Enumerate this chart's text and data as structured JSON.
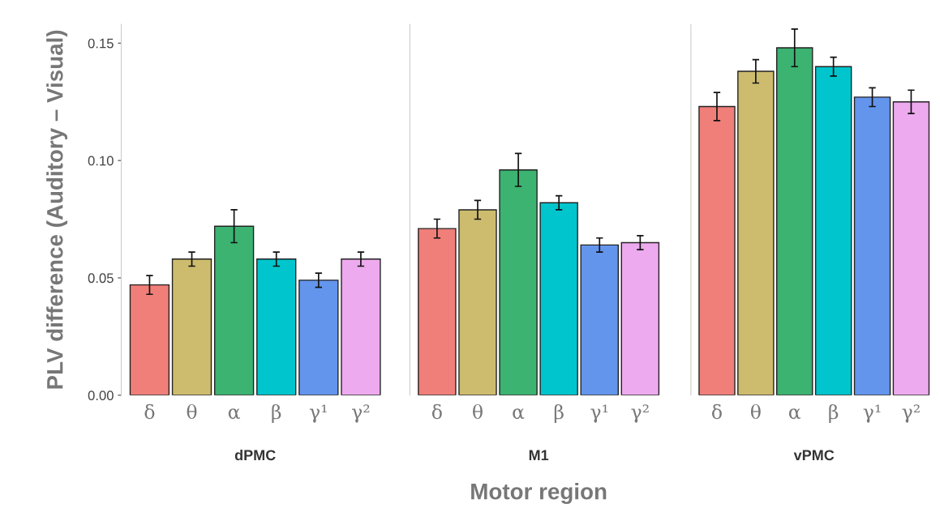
{
  "chart_data": [
    {
      "type": "bar",
      "title": "dPMC",
      "ylabel": "PLV difference (Auditory – Visual)",
      "categories": [
        "δ",
        "θ",
        "α",
        "β",
        "γ¹",
        "γ²"
      ],
      "values": [
        0.047,
        0.058,
        0.072,
        0.058,
        0.049,
        0.058
      ],
      "errors": [
        0.004,
        0.003,
        0.007,
        0.003,
        0.003,
        0.003
      ],
      "colors": [
        "#f07f7a",
        "#cdbc6e",
        "#3cb371",
        "#00c5cd",
        "#6495ed",
        "#eeaaee"
      ],
      "ylim": [
        0,
        0.158
      ],
      "yticks": [
        {
          "value": 0,
          "label": "0.00"
        },
        {
          "value": 0.05,
          "label": "0.05"
        },
        {
          "value": 0.1,
          "label": "0.10"
        },
        {
          "value": 0.15,
          "label": "0.15"
        }
      ],
      "grid": false,
      "legend": false
    },
    {
      "type": "bar",
      "title": "M1",
      "xlabel": "Motor region",
      "categories": [
        "δ",
        "θ",
        "α",
        "β",
        "γ¹",
        "γ²"
      ],
      "values": [
        0.071,
        0.079,
        0.096,
        0.082,
        0.064,
        0.065
      ],
      "errors": [
        0.004,
        0.004,
        0.007,
        0.003,
        0.003,
        0.003
      ],
      "colors": [
        "#f07f7a",
        "#cdbc6e",
        "#3cb371",
        "#00c5cd",
        "#6495ed",
        "#eeaaee"
      ],
      "ylim": [
        0,
        0.158
      ],
      "tick_labels": "x",
      "grid": false,
      "legend": false
    },
    {
      "type": "bar",
      "title": "vPMC",
      "categories": [
        "δ",
        "θ",
        "α",
        "β",
        "γ¹",
        "γ²"
      ],
      "values": [
        0.123,
        0.138,
        0.148,
        0.14,
        0.127,
        0.125
      ],
      "errors": [
        0.006,
        0.005,
        0.008,
        0.004,
        0.004,
        0.005
      ],
      "colors": [
        "#f07f7a",
        "#cdbc6e",
        "#3cb371",
        "#00c5cd",
        "#6495ed",
        "#eeaaee"
      ],
      "ylim": [
        0,
        0.158
      ],
      "tick_labels": "x",
      "grid": false,
      "legend": false
    }
  ]
}
